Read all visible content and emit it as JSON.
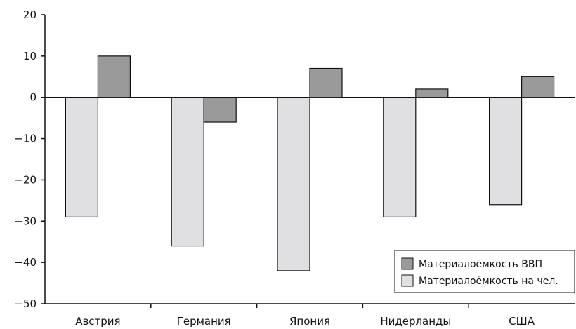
{
  "chart_data": {
    "type": "bar",
    "categories": [
      "Австрия",
      "Германия",
      "Япония",
      "Нидерланды",
      "США"
    ],
    "series": [
      {
        "name": "Материалоёмкость на чел.",
        "values": [
          -29,
          -36,
          -42,
          -29,
          -26
        ],
        "color": "#e0e0e2"
      },
      {
        "name": "Материалоёмкость ВВП",
        "values": [
          10,
          -6,
          7,
          2,
          5
        ],
        "color": "#9a9a9a"
      }
    ],
    "ylim": [
      -50,
      20
    ],
    "yticks": [
      20,
      10,
      0,
      -10,
      -20,
      -30,
      -40,
      -50
    ],
    "ytick_labels": [
      "20",
      "10",
      "0",
      "−10",
      "−20",
      "−30",
      "−40",
      "−50"
    ],
    "title": "",
    "xlabel": "",
    "ylabel": "",
    "grid": false,
    "legend": {
      "position": "bottom-right",
      "entries": [
        {
          "label": "Материалоёмкость ВВП",
          "color": "#9a9a9a"
        },
        {
          "label": "Материалоёмкость на чел.",
          "color": "#e0e0e2"
        }
      ]
    }
  }
}
